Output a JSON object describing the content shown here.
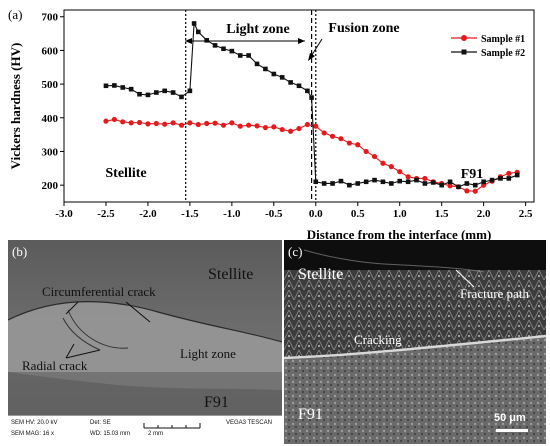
{
  "panel_a": {
    "label": "(a)",
    "ylabel": "Vickers hardness (HV)",
    "xlabel": "Distance from the interface (mm)",
    "zone_light": "Light zone",
    "zone_fusion": "Fusion zone",
    "region_left": "Stellite",
    "region_right": "F91"
  },
  "chart_data": {
    "type": "line",
    "xlabel": "Distance from the interface (mm)",
    "ylabel": "Vickers hardness (HV)",
    "xlim": [
      -3.0,
      2.6
    ],
    "ylim": [
      150,
      720
    ],
    "xticks": [
      -3.0,
      -2.5,
      -2.0,
      -1.5,
      -1.0,
      -0.5,
      0.0,
      0.5,
      1.0,
      1.5,
      2.0,
      2.5
    ],
    "yticks": [
      200,
      300,
      400,
      500,
      600,
      700
    ],
    "xtick_labels": [
      "-3.0",
      "-2.5",
      "-2.0",
      "-1.5",
      "-1.0",
      "-0.5",
      "0.0",
      "0.5",
      "1.0",
      "1.5",
      "2.0",
      "2.5"
    ],
    "ytick_labels": [
      "200",
      "300",
      "400",
      "500",
      "600",
      "700"
    ],
    "legend_position": "top-right",
    "vlines": [
      -1.55,
      -0.05,
      0.0
    ],
    "series": [
      {
        "name": "Sample #1",
        "color": "#e41a1c",
        "marker": "circle",
        "x": [
          -2.5,
          -2.4,
          -2.3,
          -2.2,
          -2.1,
          -2.0,
          -1.9,
          -1.8,
          -1.7,
          -1.6,
          -1.5,
          -1.4,
          -1.3,
          -1.2,
          -1.1,
          -1.0,
          -0.9,
          -0.8,
          -0.7,
          -0.6,
          -0.5,
          -0.4,
          -0.3,
          -0.2,
          -0.1,
          0.0,
          0.1,
          0.2,
          0.3,
          0.4,
          0.5,
          0.6,
          0.7,
          0.8,
          0.9,
          1.0,
          1.1,
          1.2,
          1.3,
          1.4,
          1.5,
          1.6,
          1.7,
          1.8,
          1.9,
          2.0,
          2.1,
          2.2,
          2.3,
          2.4
        ],
        "y": [
          390,
          395,
          388,
          385,
          386,
          382,
          383,
          381,
          385,
          378,
          385,
          380,
          383,
          384,
          378,
          385,
          375,
          378,
          376,
          371,
          373,
          365,
          360,
          368,
          380,
          375,
          355,
          345,
          338,
          325,
          320,
          300,
          285,
          265,
          255,
          240,
          225,
          220,
          220,
          210,
          205,
          198,
          195,
          183,
          182,
          200,
          212,
          225,
          235,
          238
        ]
      },
      {
        "name": "Sample #2",
        "color": "#111111",
        "marker": "square",
        "x": [
          -2.5,
          -2.4,
          -2.3,
          -2.2,
          -2.1,
          -2.0,
          -1.9,
          -1.8,
          -1.7,
          -1.6,
          -1.5,
          -1.45,
          -1.4,
          -1.3,
          -1.2,
          -1.1,
          -1.0,
          -0.9,
          -0.8,
          -0.7,
          -0.6,
          -0.5,
          -0.4,
          -0.3,
          -0.2,
          -0.1,
          -0.05,
          0.0,
          0.1,
          0.2,
          0.3,
          0.4,
          0.5,
          0.6,
          0.7,
          0.8,
          0.9,
          1.0,
          1.1,
          1.2,
          1.3,
          1.4,
          1.5,
          1.6,
          1.7,
          1.8,
          1.9,
          2.0,
          2.1,
          2.2,
          2.3,
          2.4
        ],
        "y": [
          495,
          496,
          490,
          485,
          470,
          468,
          475,
          480,
          475,
          462,
          480,
          680,
          655,
          630,
          615,
          605,
          598,
          585,
          585,
          560,
          545,
          530,
          520,
          505,
          495,
          480,
          460,
          210,
          205,
          205,
          212,
          200,
          205,
          210,
          215,
          210,
          205,
          212,
          210,
          215,
          205,
          208,
          200,
          210,
          195,
          205,
          200,
          210,
          215,
          220,
          220,
          230
        ]
      }
    ]
  },
  "panel_b": {
    "label": "(b)",
    "stellite": "Stellite",
    "circumferential_crack": "Circumferential crack",
    "radial_crack": "Radial crack",
    "light_zone": "Light zone",
    "f91": "F91",
    "info": {
      "hv": "SEM HV: 20.0 kV",
      "det": "Det: SE",
      "mag": "SEM MAG: 16 x",
      "wd": "WD: 15.03 mm",
      "scale": "2 mm",
      "brand": "VEGA3 TESCAN"
    }
  },
  "panel_c": {
    "label": "(c)",
    "stellite": "Stellite",
    "fracture_path": "Fracture path",
    "cracking": "Cracking",
    "f91": "F91",
    "scale": "50 μm"
  }
}
